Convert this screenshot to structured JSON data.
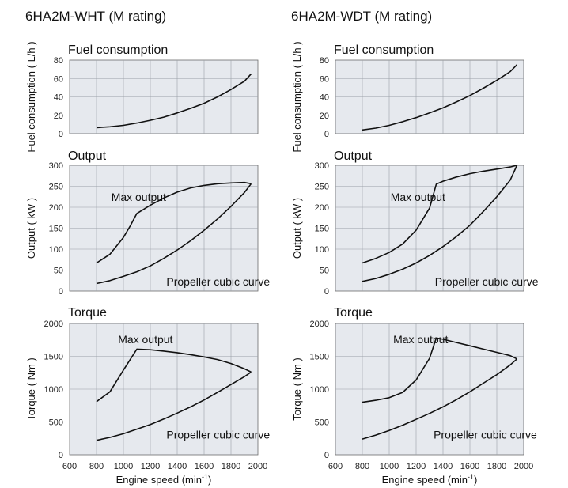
{
  "chart_data": [
    {
      "type": "line",
      "column_title": "6HA2M-WHT (M rating)",
      "panels": [
        {
          "key": "fuel",
          "title": "Fuel consumption",
          "ylabel": "Fuel consumption ( L/h )",
          "ylim": [
            0,
            80
          ],
          "yticks": [
            0,
            20,
            40,
            60,
            80
          ],
          "series": [
            {
              "x": [
                800,
                900,
                1000,
                1100,
                1200,
                1300,
                1400,
                1500,
                1600,
                1700,
                1800,
                1900,
                1950
              ],
              "y": [
                6.5,
                7.5,
                9,
                11.5,
                14.5,
                18,
                22.5,
                27.5,
                33,
                40,
                48,
                57,
                65
              ]
            }
          ],
          "annotations": []
        },
        {
          "key": "output",
          "title": "Output",
          "ylabel": "Output ( kW )",
          "ylim": [
            0,
            300
          ],
          "yticks": [
            0,
            50,
            100,
            150,
            200,
            250,
            300
          ],
          "series": [
            {
              "name": "Max output",
              "x": [
                800,
                900,
                1000,
                1050,
                1100,
                1200,
                1300,
                1400,
                1500,
                1600,
                1700,
                1800,
                1900,
                1950
              ],
              "y": [
                67,
                88,
                128,
                155,
                185,
                205,
                222,
                236,
                246,
                252,
                256,
                258,
                259,
                256
              ]
            },
            {
              "name": "Propeller cubic curve",
              "x": [
                800,
                900,
                1000,
                1100,
                1200,
                1300,
                1400,
                1500,
                1600,
                1700,
                1800,
                1900,
                1950
              ],
              "y": [
                18,
                25,
                35,
                46,
                60,
                78,
                98,
                120,
                145,
                172,
                202,
                235,
                256
              ]
            }
          ],
          "annotations": [
            {
              "text": "Max output",
              "x": 910,
              "y": 215
            },
            {
              "text": "Propeller cubic curve",
              "x": 1320,
              "y": 13
            }
          ]
        },
        {
          "key": "torque",
          "title": "Torque",
          "ylabel": "Torque ( Nm )",
          "ylim": [
            0,
            2000
          ],
          "yticks": [
            0,
            500,
            1000,
            1500,
            2000
          ],
          "series": [
            {
              "name": "Max output",
              "x": [
                800,
                900,
                1000,
                1100,
                1200,
                1300,
                1400,
                1500,
                1600,
                1700,
                1800,
                1900,
                1950
              ],
              "y": [
                810,
                960,
                1290,
                1610,
                1600,
                1580,
                1555,
                1525,
                1490,
                1450,
                1390,
                1310,
                1260
              ]
            },
            {
              "name": "Propeller cubic curve",
              "x": [
                800,
                900,
                1000,
                1100,
                1200,
                1300,
                1400,
                1500,
                1600,
                1700,
                1800,
                1900,
                1950
              ],
              "y": [
                220,
                265,
                320,
                390,
                460,
                545,
                635,
                730,
                835,
                950,
                1070,
                1190,
                1260
              ]
            }
          ],
          "annotations": [
            {
              "text": "Max output",
              "x": 960,
              "y": 1700
            },
            {
              "text": "Propeller cubic curve",
              "x": 1320,
              "y": 250
            }
          ]
        }
      ],
      "xlim": [
        600,
        2000
      ],
      "xticks": [
        600,
        800,
        1000,
        1200,
        1400,
        1600,
        1800,
        2000
      ],
      "xlabel": "Engine speed (min",
      "xlabel_sup": "-1",
      "xlabel_close": ")"
    },
    {
      "type": "line",
      "column_title": "6HA2M-WDT (M rating)",
      "panels": [
        {
          "key": "fuel",
          "title": "Fuel consumption",
          "ylabel": "Fuel consumption ( L/h )",
          "ylim": [
            0,
            80
          ],
          "yticks": [
            0,
            20,
            40,
            60,
            80
          ],
          "series": [
            {
              "x": [
                800,
                900,
                1000,
                1100,
                1200,
                1300,
                1400,
                1500,
                1600,
                1700,
                1800,
                1900,
                1950
              ],
              "y": [
                4,
                6,
                9,
                13,
                17.5,
                22.5,
                28,
                34.5,
                41.5,
                49.5,
                58,
                67.5,
                75
              ]
            }
          ],
          "annotations": []
        },
        {
          "key": "output",
          "title": "Output",
          "ylabel": "Output ( kW )",
          "ylim": [
            0,
            300
          ],
          "yticks": [
            0,
            50,
            100,
            150,
            200,
            250,
            300
          ],
          "series": [
            {
              "name": "Max output",
              "x": [
                800,
                900,
                1000,
                1100,
                1200,
                1300,
                1350,
                1400,
                1500,
                1600,
                1700,
                1800,
                1900,
                1950
              ],
              "y": [
                67,
                78,
                92,
                112,
                145,
                198,
                255,
                262,
                272,
                280,
                286,
                291,
                296,
                300
              ]
            },
            {
              "name": "Propeller cubic curve",
              "x": [
                800,
                900,
                1000,
                1100,
                1200,
                1300,
                1400,
                1500,
                1600,
                1700,
                1800,
                1900,
                1950
              ],
              "y": [
                23,
                30,
                40,
                52,
                67,
                85,
                106,
                130,
                157,
                190,
                225,
                265,
                300
              ]
            }
          ],
          "annotations": [
            {
              "text": "Max output",
              "x": 1010,
              "y": 215
            },
            {
              "text": "Propeller cubic curve",
              "x": 1340,
              "y": 13
            }
          ]
        },
        {
          "key": "torque",
          "title": "Torque",
          "ylabel": "Torque ( Nm )",
          "ylim": [
            0,
            2000
          ],
          "yticks": [
            0,
            500,
            1000,
            1500,
            2000
          ],
          "series": [
            {
              "name": "Max output",
              "x": [
                800,
                900,
                1000,
                1100,
                1200,
                1300,
                1350,
                1400,
                1500,
                1600,
                1700,
                1800,
                1900,
                1950
              ],
              "y": [
                800,
                830,
                870,
                950,
                1140,
                1470,
                1780,
                1760,
                1710,
                1660,
                1610,
                1560,
                1510,
                1460
              ]
            },
            {
              "name": "Propeller cubic curve",
              "x": [
                800,
                900,
                1000,
                1100,
                1200,
                1300,
                1400,
                1500,
                1600,
                1700,
                1800,
                1900,
                1950
              ],
              "y": [
                240,
                300,
                370,
                450,
                540,
                630,
                730,
                840,
                960,
                1090,
                1220,
                1370,
                1460
              ]
            }
          ],
          "annotations": [
            {
              "text": "Max output",
              "x": 1030,
              "y": 1700
            },
            {
              "text": "Propeller cubic curve",
              "x": 1330,
              "y": 250
            }
          ]
        }
      ],
      "xlim": [
        600,
        2000
      ],
      "xticks": [
        600,
        800,
        1000,
        1200,
        1400,
        1600,
        1800,
        2000
      ],
      "xlabel": "Engine speed (min",
      "xlabel_sup": "-1",
      "xlabel_close": ")"
    }
  ]
}
